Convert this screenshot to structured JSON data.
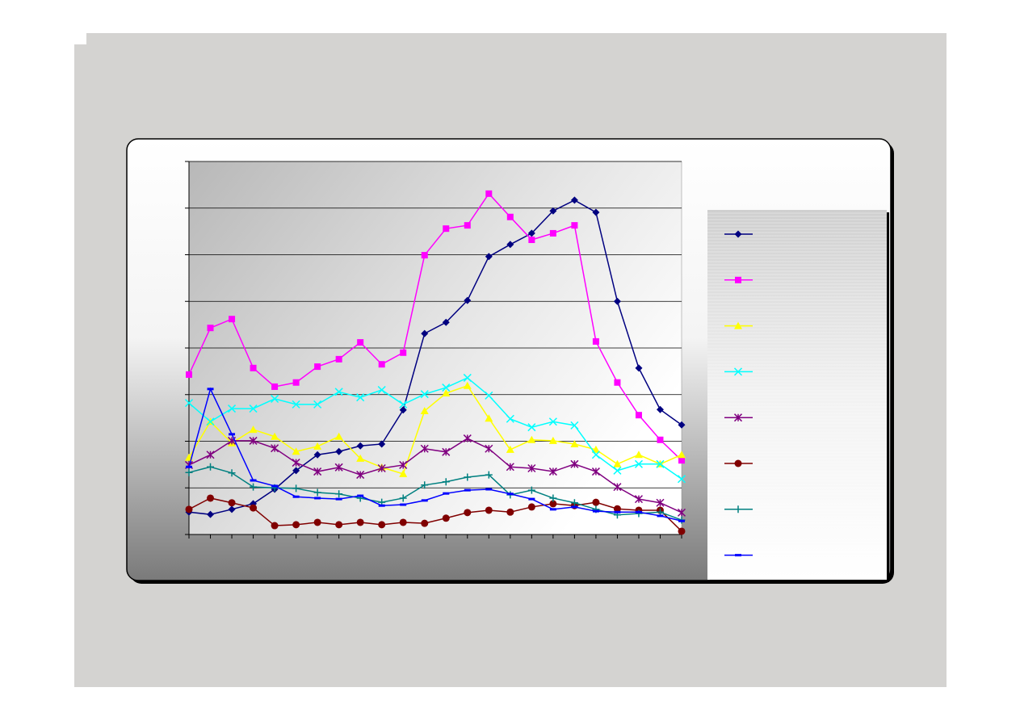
{
  "chart_data": {
    "type": "line",
    "categories": [
      null,
      null,
      null,
      null,
      null,
      null,
      null,
      null,
      null,
      null,
      null,
      null,
      null,
      null,
      null,
      null,
      null,
      null,
      null,
      null,
      null,
      null,
      null,
      null
    ],
    "ylim": [
      0,
      8
    ],
    "yticks": [
      0,
      1,
      2,
      3,
      4,
      5,
      6,
      7,
      8
    ],
    "grid": true,
    "legend": "right",
    "series": [
      {
        "color": "#000080",
        "marker": "diamond",
        "values": [
          0.48,
          0.43,
          0.54,
          0.66,
          0.97,
          1.37,
          1.71,
          1.78,
          1.9,
          1.94,
          2.67,
          4.31,
          4.55,
          5.02,
          5.96,
          6.22,
          6.46,
          6.94,
          7.17,
          6.91,
          5.0,
          3.57,
          2.68,
          2.35
        ]
      },
      {
        "color": "#ff00ff",
        "marker": "square",
        "values": [
          3.43,
          4.43,
          4.62,
          3.57,
          3.17,
          3.26,
          3.6,
          3.76,
          4.12,
          3.65,
          3.9,
          5.99,
          6.56,
          6.63,
          7.31,
          6.81,
          6.32,
          6.46,
          6.63,
          4.14,
          3.26,
          2.56,
          2.03,
          1.59
        ]
      },
      {
        "color": "#ffff00",
        "marker": "triangle",
        "values": [
          1.65,
          2.42,
          1.96,
          2.25,
          2.1,
          1.78,
          1.89,
          2.1,
          1.63,
          1.44,
          1.3,
          2.65,
          3.03,
          3.19,
          2.49,
          1.82,
          2.03,
          2.01,
          1.94,
          1.82,
          1.51,
          1.71,
          1.51,
          1.71
        ]
      },
      {
        "color": "#00ffff",
        "marker": "x",
        "values": [
          2.82,
          2.42,
          2.7,
          2.7,
          2.91,
          2.79,
          2.79,
          3.06,
          2.94,
          3.1,
          2.79,
          3.01,
          3.15,
          3.36,
          2.98,
          2.48,
          2.3,
          2.42,
          2.34,
          1.71,
          1.37,
          1.51,
          1.51,
          1.19
        ]
      },
      {
        "color": "#800080",
        "marker": "star",
        "values": [
          1.49,
          1.71,
          2.01,
          2.01,
          1.85,
          1.54,
          1.35,
          1.44,
          1.28,
          1.42,
          1.49,
          1.84,
          1.77,
          2.06,
          1.84,
          1.45,
          1.42,
          1.35,
          1.51,
          1.35,
          1.02,
          0.76,
          0.68,
          0.47
        ]
      },
      {
        "color": "#800000",
        "marker": "circle",
        "values": [
          0.54,
          0.78,
          0.68,
          0.57,
          0.19,
          0.21,
          0.26,
          0.21,
          0.26,
          0.21,
          0.26,
          0.24,
          0.35,
          0.47,
          0.52,
          0.48,
          0.59,
          0.66,
          0.62,
          0.69,
          0.55,
          0.52,
          0.52,
          0.07
        ]
      },
      {
        "color": "#008080",
        "marker": "plus",
        "values": [
          1.33,
          1.45,
          1.32,
          1.02,
          1.0,
          0.99,
          0.9,
          0.87,
          0.78,
          0.69,
          0.78,
          1.06,
          1.13,
          1.23,
          1.28,
          0.85,
          0.95,
          0.78,
          0.68,
          0.54,
          0.42,
          0.45,
          0.48,
          0.31
        ]
      },
      {
        "color": "#0000ff",
        "marker": "dash",
        "values": [
          1.45,
          3.12,
          2.15,
          1.16,
          1.04,
          0.81,
          0.78,
          0.76,
          0.83,
          0.62,
          0.64,
          0.73,
          0.88,
          0.95,
          0.97,
          0.87,
          0.76,
          0.54,
          0.59,
          0.5,
          0.48,
          0.48,
          0.4,
          0.29
        ]
      }
    ]
  }
}
